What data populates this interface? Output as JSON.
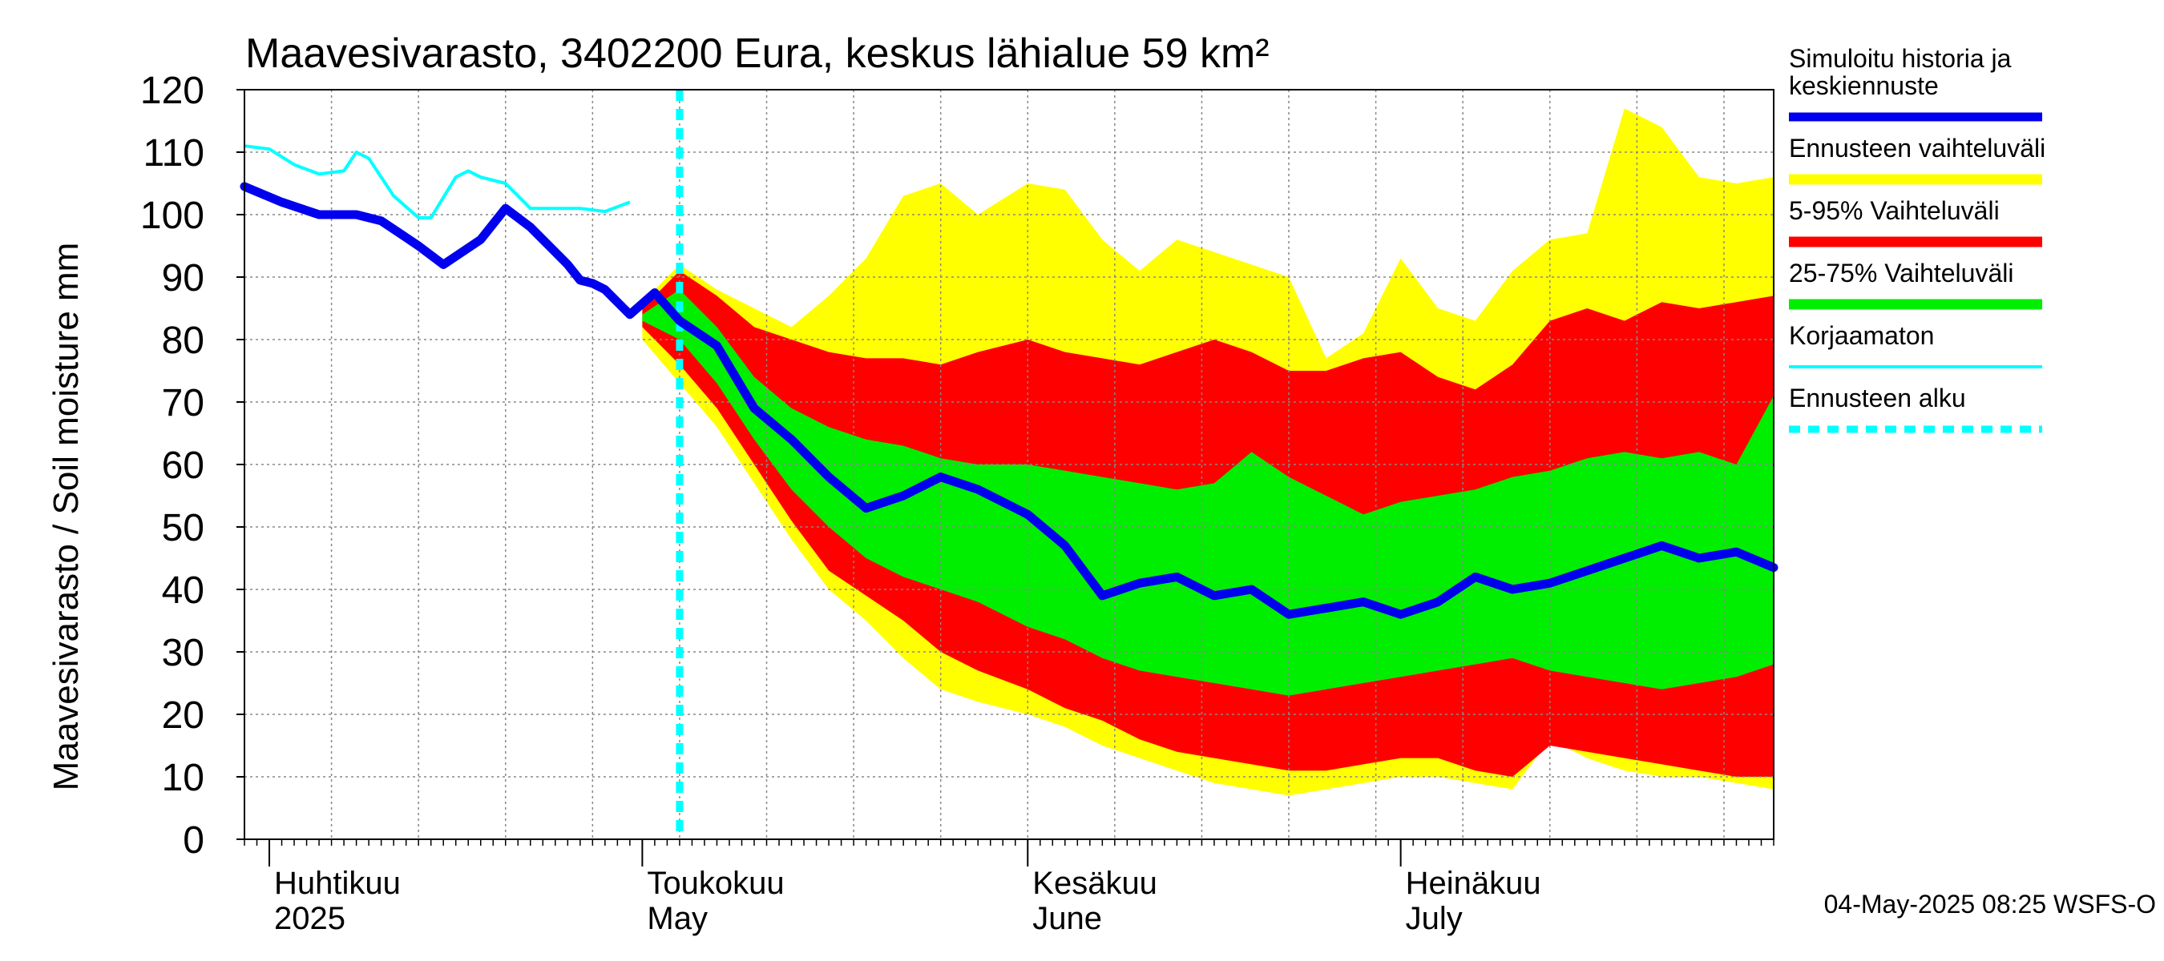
{
  "chart_data": {
    "type": "area",
    "title": "Maavesivarasto, 3402200 Eura, keskus lähialue 59 km²",
    "ylabel": "Maavesivarasto / Soil moisture   mm",
    "ylim": [
      0,
      120
    ],
    "yticks": [
      0,
      10,
      20,
      30,
      40,
      50,
      60,
      70,
      80,
      90,
      100,
      110,
      120
    ],
    "xlim": [
      "2025-03-30",
      "2025-07-31"
    ],
    "grid": true,
    "legend_position": "right",
    "x_tick_labels": [
      {
        "date": "2025-04-01",
        "line1": "Huhtikuu",
        "line2": "2025"
      },
      {
        "date": "2025-05-01",
        "line1": "Toukokuu",
        "line2": "May"
      },
      {
        "date": "2025-06-01",
        "line1": "Kesäkuu",
        "line2": "June"
      },
      {
        "date": "2025-07-01",
        "line1": "Heinäkuu",
        "line2": "July"
      }
    ],
    "forecast_start": "2025-05-04",
    "footer": "04-May-2025 08:25 WSFS-O",
    "colors": {
      "simulated": "#0000ee",
      "range": "#ffff00",
      "p5_95": "#ff0000",
      "p25_75": "#00ee00",
      "uncorrected": "#00ffff",
      "forecast_start": "#00ffff",
      "grid": "#888888"
    },
    "legend": [
      {
        "key": "simulated",
        "label_lines": [
          "Simuloitu historia ja",
          "keskiennuste"
        ],
        "style": "thick"
      },
      {
        "key": "range",
        "label_lines": [
          "Ennusteen vaihteluväli"
        ],
        "style": "band"
      },
      {
        "key": "p5_95",
        "label_lines": [
          "5-95% Vaihteluväli"
        ],
        "style": "band"
      },
      {
        "key": "p25_75",
        "label_lines": [
          "25-75% Vaihteluväli"
        ],
        "style": "band"
      },
      {
        "key": "uncorrected",
        "label_lines": [
          "Korjaamaton"
        ],
        "style": "thin"
      },
      {
        "key": "forecast_start",
        "label_lines": [
          "Ennusteen alku"
        ],
        "style": "dashed"
      }
    ],
    "series": [
      {
        "name": "Simuloitu historia ja keskiennuste",
        "x": [
          "2025-03-30",
          "2025-04-02",
          "2025-04-05",
          "2025-04-08",
          "2025-04-10",
          "2025-04-13",
          "2025-04-15",
          "2025-04-18",
          "2025-04-20",
          "2025-04-22",
          "2025-04-24",
          "2025-04-25",
          "2025-04-26",
          "2025-04-27",
          "2025-04-28",
          "2025-04-30",
          "2025-05-02",
          "2025-05-04",
          "2025-05-07",
          "2025-05-10",
          "2025-05-13",
          "2025-05-16",
          "2025-05-19",
          "2025-05-22",
          "2025-05-25",
          "2025-05-28",
          "2025-06-01",
          "2025-06-04",
          "2025-06-07",
          "2025-06-10",
          "2025-06-13",
          "2025-06-16",
          "2025-06-19",
          "2025-06-22",
          "2025-06-25",
          "2025-06-28",
          "2025-07-01",
          "2025-07-04",
          "2025-07-07",
          "2025-07-10",
          "2025-07-13",
          "2025-07-16",
          "2025-07-19",
          "2025-07-22",
          "2025-07-25",
          "2025-07-28",
          "2025-07-31"
        ],
        "values": [
          104.5,
          102,
          100,
          100,
          99,
          95,
          92,
          96,
          101,
          98,
          94,
          92,
          89.5,
          89,
          88,
          84,
          87.5,
          83,
          79,
          69,
          64,
          58,
          53,
          55,
          58,
          56,
          52,
          47,
          39,
          41,
          42,
          39,
          40,
          36,
          37,
          38,
          36,
          38,
          42,
          40,
          41,
          43,
          45,
          47,
          45,
          46,
          43.5
        ]
      },
      {
        "name": "Korjaamaton",
        "x": [
          "2025-03-30",
          "2025-04-01",
          "2025-04-03",
          "2025-04-05",
          "2025-04-07",
          "2025-04-08",
          "2025-04-09",
          "2025-04-11",
          "2025-04-13",
          "2025-04-14",
          "2025-04-16",
          "2025-04-17",
          "2025-04-18",
          "2025-04-20",
          "2025-04-22",
          "2025-04-24",
          "2025-04-26",
          "2025-04-28",
          "2025-04-30"
        ],
        "values": [
          111,
          110.5,
          108,
          106.5,
          107,
          110,
          109,
          103,
          99.5,
          99.5,
          106,
          107,
          106,
          105,
          101,
          101,
          101,
          100.5,
          102
        ]
      },
      {
        "name": "Ennusteen vaihteluväli",
        "x": [
          "2025-05-01",
          "2025-05-04",
          "2025-05-07",
          "2025-05-10",
          "2025-05-13",
          "2025-05-16",
          "2025-05-19",
          "2025-05-22",
          "2025-05-25",
          "2025-05-28",
          "2025-06-01",
          "2025-06-04",
          "2025-06-07",
          "2025-06-10",
          "2025-06-13",
          "2025-06-16",
          "2025-06-19",
          "2025-06-22",
          "2025-06-25",
          "2025-06-28",
          "2025-07-01",
          "2025-07-04",
          "2025-07-07",
          "2025-07-10",
          "2025-07-13",
          "2025-07-16",
          "2025-07-19",
          "2025-07-22",
          "2025-07-25",
          "2025-07-28",
          "2025-07-31"
        ],
        "upper": [
          86,
          92,
          88,
          85,
          82,
          87,
          93,
          103,
          105,
          100,
          105,
          104,
          96,
          91,
          96,
          94,
          92,
          90,
          77,
          81,
          93,
          85,
          83,
          91,
          96,
          97,
          117,
          114,
          106,
          105,
          106
        ],
        "lower": [
          80,
          73,
          66,
          57,
          48,
          40,
          35,
          29,
          24,
          22,
          20,
          18,
          15,
          13,
          11,
          9,
          8,
          7,
          8,
          9,
          10,
          10,
          9,
          8,
          16,
          13,
          11,
          10,
          10,
          9,
          8
        ]
      },
      {
        "name": "5-95% Vaihteluväli",
        "x": [
          "2025-05-01",
          "2025-05-04",
          "2025-05-07",
          "2025-05-10",
          "2025-05-13",
          "2025-05-16",
          "2025-05-19",
          "2025-05-22",
          "2025-05-25",
          "2025-05-28",
          "2025-06-01",
          "2025-06-04",
          "2025-06-07",
          "2025-06-10",
          "2025-06-13",
          "2025-06-16",
          "2025-06-19",
          "2025-06-22",
          "2025-06-25",
          "2025-06-28",
          "2025-07-01",
          "2025-07-04",
          "2025-07-07",
          "2025-07-10",
          "2025-07-13",
          "2025-07-16",
          "2025-07-19",
          "2025-07-22",
          "2025-07-25",
          "2025-07-28",
          "2025-07-31"
        ],
        "upper": [
          85,
          91,
          87,
          82,
          80,
          78,
          77,
          77,
          76,
          78,
          80,
          78,
          77,
          76,
          78,
          80,
          78,
          75,
          75,
          77,
          78,
          74,
          72,
          76,
          83,
          85,
          83,
          86,
          85,
          86,
          87
        ],
        "lower": [
          82,
          76,
          69,
          60,
          51,
          43,
          39,
          35,
          30,
          27,
          24,
          21,
          19,
          16,
          14,
          13,
          12,
          11,
          11,
          12,
          13,
          13,
          11,
          10,
          15,
          14,
          13,
          12,
          11,
          10,
          10
        ]
      },
      {
        "name": "25-75% Vaihteluväli",
        "x": [
          "2025-05-01",
          "2025-05-04",
          "2025-05-07",
          "2025-05-10",
          "2025-05-13",
          "2025-05-16",
          "2025-05-19",
          "2025-05-22",
          "2025-05-25",
          "2025-05-28",
          "2025-06-01",
          "2025-06-04",
          "2025-06-07",
          "2025-06-10",
          "2025-06-13",
          "2025-06-16",
          "2025-06-19",
          "2025-06-22",
          "2025-06-25",
          "2025-06-28",
          "2025-07-01",
          "2025-07-04",
          "2025-07-07",
          "2025-07-10",
          "2025-07-13",
          "2025-07-16",
          "2025-07-19",
          "2025-07-22",
          "2025-07-25",
          "2025-07-28",
          "2025-07-31"
        ],
        "upper": [
          84,
          88,
          82,
          74,
          69,
          66,
          64,
          63,
          61,
          60,
          60,
          59,
          58,
          57,
          56,
          57,
          62,
          58,
          55,
          52,
          54,
          55,
          56,
          58,
          59,
          61,
          62,
          61,
          62,
          60,
          71
        ],
        "lower": [
          83,
          80,
          73,
          64,
          56,
          50,
          45,
          42,
          40,
          38,
          34,
          32,
          29,
          27,
          26,
          25,
          24,
          23,
          24,
          25,
          26,
          27,
          28,
          29,
          27,
          26,
          25,
          24,
          25,
          26,
          28
        ]
      }
    ]
  }
}
